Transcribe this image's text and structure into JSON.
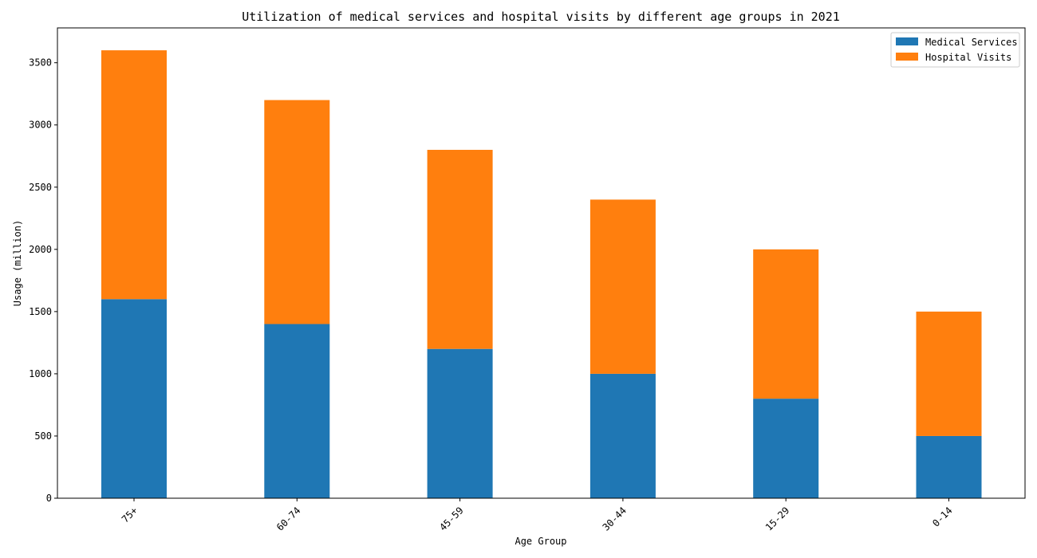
{
  "chart_data": {
    "type": "bar",
    "stacked": true,
    "title": "Utilization of medical services and hospital visits by different age groups in 2021",
    "xlabel": "Age Group",
    "ylabel": "Usage (million)",
    "categories": [
      "75+",
      "60-74",
      "45-59",
      "30-44",
      "15-29",
      "0-14"
    ],
    "series": [
      {
        "name": "Medical Services",
        "color": "#1f77b4",
        "values": [
          1600,
          1400,
          1200,
          1000,
          800,
          500
        ]
      },
      {
        "name": "Hospital Visits",
        "color": "#ff7f0e",
        "values": [
          2000,
          1800,
          1600,
          1400,
          1200,
          1000
        ]
      }
    ],
    "ylim": [
      0,
      3780
    ],
    "yticks": [
      0,
      500,
      1000,
      1500,
      2000,
      2500,
      3000,
      3500
    ],
    "x_tick_rotation_deg": 45,
    "legend_position": "top-right",
    "grid": false
  }
}
